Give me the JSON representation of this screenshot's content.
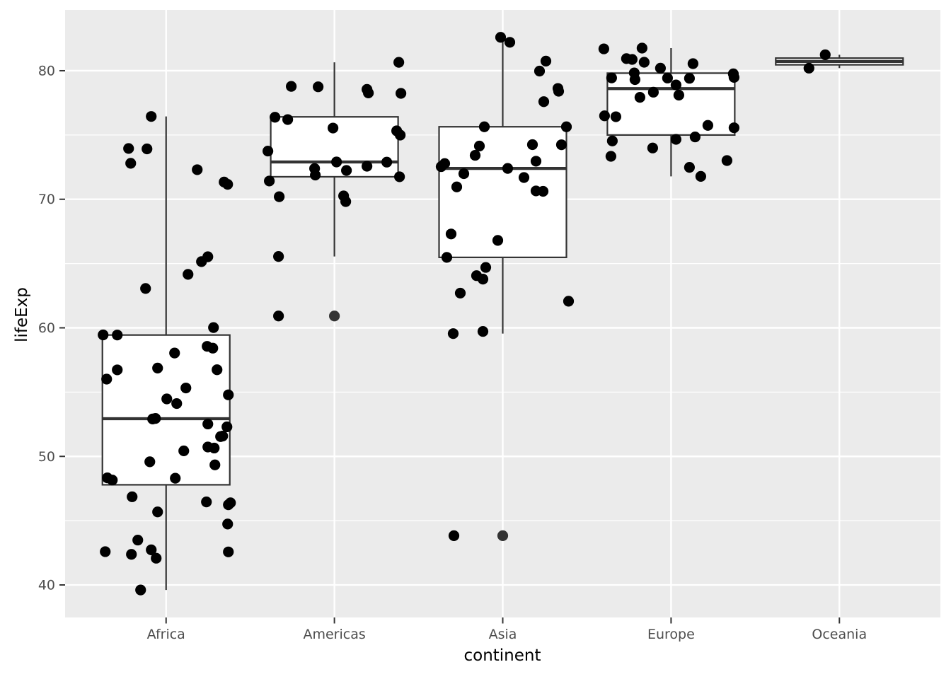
{
  "chart_data": {
    "type": "boxplot",
    "title": "",
    "xlabel": "continent",
    "ylabel": "lifeExp",
    "categories": [
      "Africa",
      "Americas",
      "Asia",
      "Europe",
      "Oceania"
    ],
    "y_ticks": [
      40,
      50,
      60,
      70,
      80
    ],
    "y_minor_ticks": [
      45,
      55,
      65,
      75
    ],
    "y_domain": [
      37.47,
      84.73
    ],
    "legend": "none",
    "grid": "on",
    "panel_bg": "#EBEBEB",
    "grid_color": "#FFFFFF",
    "box_color": "#333333",
    "box_fill": "#FFFFFF",
    "point_color": "#000000",
    "outlier_color": "#333333",
    "tick_mark_color": "#333333",
    "tick_label_color": "#4D4D4D",
    "axis_title_color": "#000000",
    "series": [
      {
        "category": "Africa",
        "box": {
          "min": 39.61,
          "q1": 47.79,
          "median": 52.93,
          "q3": 59.44,
          "max": 76.44
        },
        "outliers": [],
        "points": [
          [
            76.44,
            -21
          ],
          [
            73.95,
            -53
          ],
          [
            73.92,
            -27
          ],
          [
            72.8,
            -50
          ],
          [
            72.3,
            44
          ],
          [
            71.34,
            82
          ],
          [
            71.16,
            87
          ],
          [
            65.53,
            59
          ],
          [
            65.15,
            50
          ],
          [
            64.16,
            31
          ],
          [
            63.06,
            -29
          ],
          [
            60.02,
            67
          ],
          [
            59.45,
            -89
          ],
          [
            59.44,
            -69
          ],
          [
            58.56,
            58
          ],
          [
            58.42,
            66
          ],
          [
            58.04,
            12
          ],
          [
            56.87,
            -12
          ],
          [
            56.74,
            72
          ],
          [
            56.73,
            -69
          ],
          [
            56.01,
            -84
          ],
          [
            55.32,
            28
          ],
          [
            54.79,
            88
          ],
          [
            54.47,
            1
          ],
          [
            54.11,
            15
          ],
          [
            52.95,
            -15
          ],
          [
            52.91,
            -19
          ],
          [
            52.52,
            59
          ],
          [
            52.3,
            86
          ],
          [
            51.58,
            80
          ],
          [
            51.54,
            77
          ],
          [
            50.73,
            59
          ],
          [
            50.65,
            68
          ],
          [
            50.43,
            25
          ],
          [
            49.58,
            -23
          ],
          [
            49.34,
            69
          ],
          [
            48.33,
            -83
          ],
          [
            48.3,
            13
          ],
          [
            48.16,
            -76
          ],
          [
            46.86,
            -48
          ],
          [
            46.46,
            57
          ],
          [
            46.39,
            91
          ],
          [
            46.24,
            88
          ],
          [
            45.68,
            -12
          ],
          [
            44.74,
            87
          ],
          [
            43.49,
            -40
          ],
          [
            42.73,
            -21
          ],
          [
            42.59,
            -86
          ],
          [
            42.57,
            88
          ],
          [
            42.38,
            -49
          ],
          [
            42.08,
            -14
          ],
          [
            39.61,
            -36
          ]
        ]
      },
      {
        "category": "Americas",
        "box": {
          "min": 65.55,
          "q1": 71.75,
          "median": 72.9,
          "q3": 76.41,
          "max": 80.65
        },
        "outliers": [
          60.92
        ],
        "points": [
          [
            80.65,
            91
          ],
          [
            78.78,
            -61
          ],
          [
            78.75,
            -23
          ],
          [
            78.55,
            46
          ],
          [
            78.27,
            48
          ],
          [
            78.24,
            94
          ],
          [
            76.38,
            -84
          ],
          [
            76.2,
            -66
          ],
          [
            75.54,
            -2
          ],
          [
            75.32,
            88
          ],
          [
            74.99,
            93
          ],
          [
            73.75,
            -94
          ],
          [
            72.9,
            3
          ],
          [
            72.89,
            74
          ],
          [
            72.57,
            46
          ],
          [
            72.39,
            -28
          ],
          [
            72.24,
            17
          ],
          [
            71.88,
            -27
          ],
          [
            71.75,
            92
          ],
          [
            71.42,
            -92
          ],
          [
            70.26,
            13
          ],
          [
            70.2,
            -78
          ],
          [
            69.82,
            16
          ],
          [
            65.55,
            -79
          ],
          [
            60.92,
            -79
          ]
        ]
      },
      {
        "category": "Asia",
        "box": {
          "min": 59.55,
          "q1": 65.48,
          "median": 72.4,
          "q3": 75.64,
          "max": 82.6
        },
        "outliers": [
          43.83
        ],
        "points": [
          [
            82.6,
            -3
          ],
          [
            82.21,
            10
          ],
          [
            80.75,
            61
          ],
          [
            79.97,
            52
          ],
          [
            78.62,
            78
          ],
          [
            78.4,
            79
          ],
          [
            77.59,
            58
          ],
          [
            75.64,
            90
          ],
          [
            75.64,
            -26
          ],
          [
            74.25,
            42
          ],
          [
            74.24,
            83
          ],
          [
            74.14,
            -33
          ],
          [
            73.42,
            -39
          ],
          [
            72.96,
            47
          ],
          [
            72.78,
            -82
          ],
          [
            72.54,
            -87
          ],
          [
            72.4,
            7
          ],
          [
            71.99,
            -55
          ],
          [
            71.69,
            30
          ],
          [
            70.96,
            -65
          ],
          [
            70.65,
            47
          ],
          [
            70.62,
            57
          ],
          [
            67.3,
            -73
          ],
          [
            66.8,
            -7
          ],
          [
            65.48,
            -79
          ],
          [
            64.7,
            -24
          ],
          [
            64.06,
            -37
          ],
          [
            63.79,
            -28
          ],
          [
            62.7,
            -60
          ],
          [
            62.07,
            93
          ],
          [
            59.72,
            -28
          ],
          [
            59.55,
            -70
          ],
          [
            43.83,
            -69
          ]
        ]
      },
      {
        "category": "Europe",
        "box": {
          "min": 71.78,
          "q1": 75.0,
          "median": 78.61,
          "q3": 79.81,
          "max": 81.76
        },
        "outliers": [],
        "points": [
          [
            81.76,
            -41
          ],
          [
            81.7,
            -95
          ],
          [
            80.94,
            -63
          ],
          [
            80.88,
            -55
          ],
          [
            80.66,
            -38
          ],
          [
            80.55,
            31
          ],
          [
            80.2,
            -15
          ],
          [
            79.83,
            -52
          ],
          [
            79.76,
            88
          ],
          [
            79.48,
            89
          ],
          [
            79.44,
            -84
          ],
          [
            79.43,
            -5
          ],
          [
            79.41,
            26
          ],
          [
            79.31,
            -51
          ],
          [
            78.89,
            7
          ],
          [
            78.33,
            -25
          ],
          [
            78.1,
            11
          ],
          [
            77.93,
            -44
          ],
          [
            76.49,
            -94
          ],
          [
            76.42,
            -78
          ],
          [
            75.75,
            52
          ],
          [
            75.56,
            89
          ],
          [
            74.85,
            34
          ],
          [
            74.66,
            7
          ],
          [
            74.54,
            -83
          ],
          [
            73.99,
            -26
          ],
          [
            73.34,
            -85
          ],
          [
            73.01,
            79
          ],
          [
            72.48,
            26
          ],
          [
            71.78,
            42
          ]
        ]
      },
      {
        "category": "Oceania",
        "box": {
          "min": 80.2,
          "q1": 80.46,
          "median": 80.72,
          "q3": 80.98,
          "max": 81.24
        },
        "outliers": [],
        "points": [
          [
            81.24,
            -20
          ],
          [
            80.2,
            -43
          ]
        ]
      }
    ]
  }
}
